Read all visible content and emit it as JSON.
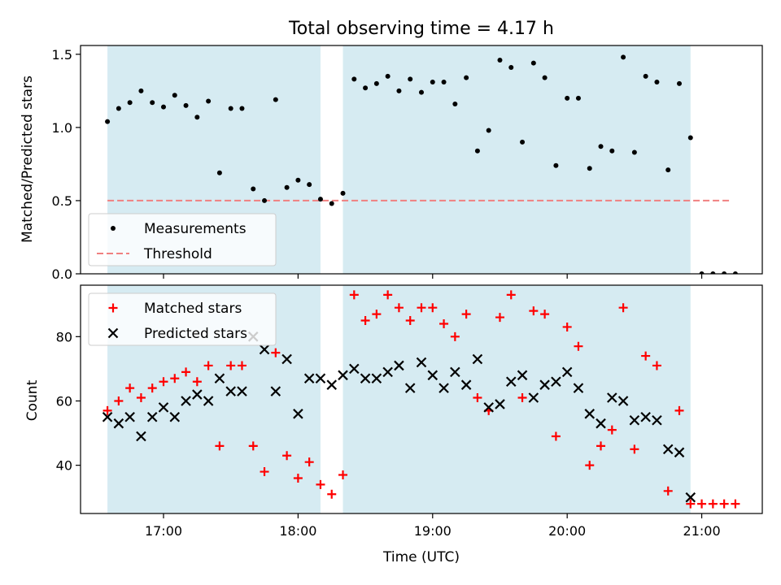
{
  "chart_data": [
    {
      "type": "scatter",
      "title": "Total observing time = 4.17 h",
      "xlabel": "",
      "ylabel": "Matched/Predicted stars",
      "xlim": [
        "16:23",
        "21:27"
      ],
      "ylim": [
        0,
        1.56
      ],
      "yticks": [
        "0.0",
        "0.5",
        "1.0",
        "1.5"
      ],
      "grid": false,
      "legend_position": "lower-left",
      "shaded_intervals": [
        [
          "16:35",
          "18:10"
        ],
        [
          "18:20",
          "20:55"
        ]
      ],
      "threshold": {
        "name": "Threshold",
        "y": 0.5,
        "x_range": [
          "16:35",
          "21:13"
        ],
        "color": "#f08080"
      },
      "series": [
        {
          "name": "Measurements",
          "marker": "dot",
          "color": "#000000",
          "points": [
            [
              "16:35",
              1.04
            ],
            [
              "16:40",
              1.13
            ],
            [
              "16:45",
              1.17
            ],
            [
              "16:50",
              1.25
            ],
            [
              "16:55",
              1.17
            ],
            [
              "17:00",
              1.14
            ],
            [
              "17:05",
              1.22
            ],
            [
              "17:10",
              1.15
            ],
            [
              "17:15",
              1.07
            ],
            [
              "17:20",
              1.18
            ],
            [
              "17:25",
              0.69
            ],
            [
              "17:30",
              1.13
            ],
            [
              "17:35",
              1.13
            ],
            [
              "17:40",
              0.58
            ],
            [
              "17:45",
              0.5
            ],
            [
              "17:50",
              1.19
            ],
            [
              "17:55",
              0.59
            ],
            [
              "18:00",
              0.64
            ],
            [
              "18:05",
              0.61
            ],
            [
              "18:10",
              0.51
            ],
            [
              "18:15",
              0.48
            ],
            [
              "18:20",
              0.55
            ],
            [
              "18:25",
              1.33
            ],
            [
              "18:30",
              1.27
            ],
            [
              "18:35",
              1.3
            ],
            [
              "18:40",
              1.35
            ],
            [
              "18:45",
              1.25
            ],
            [
              "18:50",
              1.33
            ],
            [
              "18:55",
              1.24
            ],
            [
              "19:00",
              1.31
            ],
            [
              "19:05",
              1.31
            ],
            [
              "19:10",
              1.16
            ],
            [
              "19:15",
              1.34
            ],
            [
              "19:20",
              0.84
            ],
            [
              "19:25",
              0.98
            ],
            [
              "19:30",
              1.46
            ],
            [
              "19:35",
              1.41
            ],
            [
              "19:40",
              0.9
            ],
            [
              "19:45",
              1.44
            ],
            [
              "19:50",
              1.34
            ],
            [
              "19:55",
              0.74
            ],
            [
              "20:00",
              1.2
            ],
            [
              "20:05",
              1.2
            ],
            [
              "20:10",
              0.72
            ],
            [
              "20:15",
              0.87
            ],
            [
              "20:20",
              0.84
            ],
            [
              "20:25",
              1.48
            ],
            [
              "20:30",
              0.83
            ],
            [
              "20:35",
              1.35
            ],
            [
              "20:40",
              1.31
            ],
            [
              "20:45",
              0.71
            ],
            [
              "20:50",
              1.3
            ],
            [
              "20:55",
              0.93
            ],
            [
              "21:00",
              0.0
            ],
            [
              "21:05",
              0.0
            ],
            [
              "21:10",
              0.0
            ],
            [
              "21:15",
              0.0
            ]
          ]
        },
        {
          "name": "Threshold",
          "marker": "dashed-line",
          "color": "#f08080"
        }
      ]
    },
    {
      "type": "scatter",
      "title": "",
      "xlabel": "Time (UTC)",
      "ylabel": "Count",
      "xlim": [
        "16:23",
        "21:27"
      ],
      "ylim": [
        25,
        96
      ],
      "yticks": [
        "40",
        "60",
        "80"
      ],
      "xticks": [
        "17:00",
        "18:00",
        "19:00",
        "20:00",
        "21:00"
      ],
      "grid": false,
      "legend_position": "upper-left",
      "shaded_intervals": [
        [
          "16:35",
          "18:10"
        ],
        [
          "18:20",
          "20:55"
        ]
      ],
      "series": [
        {
          "name": "Matched stars",
          "marker": "plus",
          "color": "#ff0000",
          "points": [
            [
              "16:35",
              57
            ],
            [
              "16:40",
              60
            ],
            [
              "16:45",
              64
            ],
            [
              "16:50",
              61
            ],
            [
              "16:55",
              64
            ],
            [
              "17:00",
              66
            ],
            [
              "17:05",
              67
            ],
            [
              "17:10",
              69
            ],
            [
              "17:15",
              66
            ],
            [
              "17:20",
              71
            ],
            [
              "17:25",
              46
            ],
            [
              "17:30",
              71
            ],
            [
              "17:35",
              71
            ],
            [
              "17:40",
              46
            ],
            [
              "17:45",
              38
            ],
            [
              "17:50",
              75
            ],
            [
              "17:55",
              43
            ],
            [
              "18:00",
              36
            ],
            [
              "18:05",
              41
            ],
            [
              "18:10",
              34
            ],
            [
              "18:15",
              31
            ],
            [
              "18:20",
              37
            ],
            [
              "18:25",
              93
            ],
            [
              "18:30",
              85
            ],
            [
              "18:35",
              87
            ],
            [
              "18:40",
              93
            ],
            [
              "18:45",
              89
            ],
            [
              "18:50",
              85
            ],
            [
              "18:55",
              89
            ],
            [
              "19:00",
              89
            ],
            [
              "19:05",
              84
            ],
            [
              "19:10",
              80
            ],
            [
              "19:15",
              87
            ],
            [
              "19:20",
              61
            ],
            [
              "19:25",
              57
            ],
            [
              "19:30",
              86
            ],
            [
              "19:35",
              93
            ],
            [
              "19:40",
              61
            ],
            [
              "19:45",
              88
            ],
            [
              "19:50",
              87
            ],
            [
              "19:55",
              49
            ],
            [
              "20:00",
              83
            ],
            [
              "20:05",
              77
            ],
            [
              "20:10",
              40
            ],
            [
              "20:15",
              46
            ],
            [
              "20:20",
              51
            ],
            [
              "20:25",
              89
            ],
            [
              "20:30",
              45
            ],
            [
              "20:35",
              74
            ],
            [
              "20:40",
              71
            ],
            [
              "20:45",
              32
            ],
            [
              "20:50",
              57
            ],
            [
              "20:55",
              28
            ],
            [
              "21:00",
              28
            ],
            [
              "21:05",
              28
            ],
            [
              "21:10",
              28
            ],
            [
              "21:15",
              28
            ]
          ]
        },
        {
          "name": "Predicted stars",
          "marker": "x",
          "color": "#000000",
          "points": [
            [
              "16:35",
              55
            ],
            [
              "16:40",
              53
            ],
            [
              "16:45",
              55
            ],
            [
              "16:50",
              49
            ],
            [
              "16:55",
              55
            ],
            [
              "17:00",
              58
            ],
            [
              "17:05",
              55
            ],
            [
              "17:10",
              60
            ],
            [
              "17:15",
              62
            ],
            [
              "17:20",
              60
            ],
            [
              "17:25",
              67
            ],
            [
              "17:30",
              63
            ],
            [
              "17:35",
              63
            ],
            [
              "17:40",
              80
            ],
            [
              "17:45",
              76
            ],
            [
              "17:50",
              63
            ],
            [
              "17:55",
              73
            ],
            [
              "18:00",
              56
            ],
            [
              "18:05",
              67
            ],
            [
              "18:10",
              67
            ],
            [
              "18:15",
              65
            ],
            [
              "18:20",
              68
            ],
            [
              "18:25",
              70
            ],
            [
              "18:30",
              67
            ],
            [
              "18:35",
              67
            ],
            [
              "18:40",
              69
            ],
            [
              "18:45",
              71
            ],
            [
              "18:50",
              64
            ],
            [
              "18:55",
              72
            ],
            [
              "19:00",
              68
            ],
            [
              "19:05",
              64
            ],
            [
              "19:10",
              69
            ],
            [
              "19:15",
              65
            ],
            [
              "19:20",
              73
            ],
            [
              "19:25",
              58
            ],
            [
              "19:30",
              59
            ],
            [
              "19:35",
              66
            ],
            [
              "19:40",
              68
            ],
            [
              "19:45",
              61
            ],
            [
              "19:50",
              65
            ],
            [
              "19:55",
              66
            ],
            [
              "20:00",
              69
            ],
            [
              "20:05",
              64
            ],
            [
              "20:10",
              56
            ],
            [
              "20:15",
              53
            ],
            [
              "20:20",
              61
            ],
            [
              "20:25",
              60
            ],
            [
              "20:30",
              54
            ],
            [
              "20:35",
              55
            ],
            [
              "20:40",
              54
            ],
            [
              "20:45",
              45
            ],
            [
              "20:50",
              44
            ],
            [
              "20:55",
              30
            ]
          ]
        }
      ]
    }
  ]
}
